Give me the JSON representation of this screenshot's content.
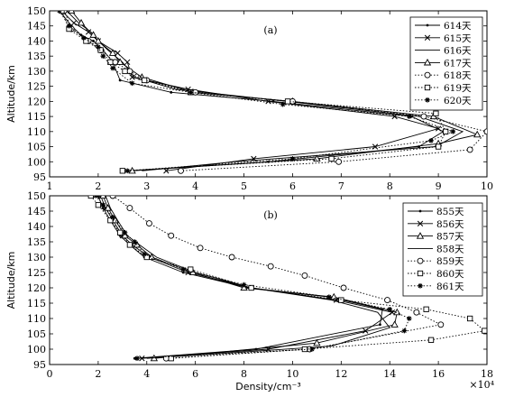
{
  "chart_data": [
    {
      "type": "line",
      "panel_label": "(a)",
      "ylabel": "Altitude/km",
      "xlabel": "",
      "xlim": [
        1,
        10
      ],
      "ylim": [
        95,
        150
      ],
      "xticks": [
        1,
        2,
        3,
        4,
        5,
        6,
        7,
        8,
        9,
        10
      ],
      "yticks": [
        95,
        100,
        105,
        110,
        115,
        120,
        125,
        130,
        135,
        140,
        145,
        150
      ],
      "grid": false,
      "legend_position": "top-right",
      "series": [
        {
          "name": "614天",
          "marker": "dot",
          "dash": "solid",
          "x": [
            1.2,
            1.45,
            1.65,
            1.9,
            2.1,
            2.3,
            2.45,
            3.5,
            5.6,
            8.45,
            9.1,
            8.6,
            5.5,
            2.6
          ],
          "y": [
            150,
            145,
            142,
            140,
            137,
            133,
            127,
            123,
            120,
            115,
            110,
            105,
            100,
            97
          ]
        },
        {
          "name": "615天",
          "marker": "x",
          "dash": "solid",
          "x": [
            1.25,
            1.5,
            1.8,
            2.0,
            2.4,
            2.6,
            2.7,
            3.85,
            5.5,
            8.1,
            9.0,
            7.7,
            5.2,
            3.4
          ],
          "y": [
            150,
            146,
            143,
            140,
            136,
            133,
            128,
            124,
            120,
            115,
            111,
            105,
            101,
            97
          ]
        },
        {
          "name": "616天",
          "marker": "none",
          "dash": "solid",
          "x": [
            1.35,
            1.6,
            1.85,
            2.0,
            2.2,
            2.5,
            2.75,
            3.6,
            5.9,
            8.6,
            9.5,
            8.95,
            4.8,
            2.9
          ],
          "y": [
            150,
            146,
            143,
            140,
            137,
            133,
            128,
            124,
            120,
            115,
            110,
            105,
            100,
            97
          ]
        },
        {
          "name": "617天",
          "marker": "triangle",
          "dash": "solid",
          "x": [
            1.45,
            1.65,
            1.9,
            2.0,
            2.3,
            2.45,
            2.9,
            3.95,
            6.0,
            8.9,
            9.8,
            9.0,
            6.5,
            2.7
          ],
          "y": [
            150,
            146,
            142,
            140,
            136,
            133,
            128,
            123,
            120,
            115,
            109,
            106,
            101,
            97
          ]
        },
        {
          "name": "618天",
          "marker": "circle",
          "dash": "dotted",
          "x": [
            1.3,
            1.45,
            1.8,
            2.05,
            2.35,
            2.65,
            3.0,
            4.0,
            6.0,
            8.7,
            10.0,
            9.65,
            6.95,
            3.7
          ],
          "y": [
            150,
            144,
            140,
            137,
            133,
            130,
            127,
            123,
            120,
            115,
            110,
            104,
            100,
            97
          ]
        },
        {
          "name": "619天",
          "marker": "square",
          "dash": "dotted",
          "x": [
            1.25,
            1.4,
            1.75,
            2.05,
            2.25,
            2.55,
            2.95,
            3.9,
            5.9,
            8.95,
            9.15,
            9.0,
            6.8,
            2.5
          ],
          "y": [
            150,
            144,
            140,
            137,
            133,
            130,
            127,
            123,
            120,
            116,
            110,
            105,
            101,
            97
          ]
        },
        {
          "name": "620天",
          "marker": "star",
          "dash": "dotted",
          "x": [
            1.2,
            1.4,
            1.7,
            2.0,
            2.1,
            2.3,
            2.7,
            3.9,
            5.8,
            8.4,
            9.3,
            8.85,
            6.0,
            2.6
          ],
          "y": [
            150,
            145,
            141,
            138,
            135,
            131,
            126,
            123,
            119,
            115,
            110,
            107,
            101,
            97
          ]
        }
      ]
    },
    {
      "type": "line",
      "panel_label": "(b)",
      "ylabel": "Altitude/km",
      "xlabel": "Density/cm⁻³",
      "x_multiplier": "×10⁴",
      "xlim": [
        0,
        18
      ],
      "ylim": [
        95,
        150
      ],
      "xticks": [
        0,
        2,
        4,
        6,
        8,
        10,
        12,
        14,
        16,
        18
      ],
      "yticks": [
        95,
        100,
        105,
        110,
        115,
        120,
        125,
        130,
        135,
        140,
        145,
        150
      ],
      "grid": false,
      "legend_position": "top-right",
      "series": [
        {
          "name": "855天",
          "marker": "dot",
          "dash": "solid",
          "x": [
            2.0,
            2.2,
            2.5,
            2.9,
            3.3,
            3.9,
            5.5,
            8.2,
            11.5,
            13.7,
            13.6,
            8.5,
            3.5
          ],
          "y": [
            150,
            146,
            142,
            137,
            134,
            130,
            125,
            120,
            117,
            113,
            108,
            100,
            97
          ]
        },
        {
          "name": "856天",
          "marker": "x",
          "dash": "solid",
          "x": [
            2.1,
            2.3,
            2.6,
            3.0,
            3.4,
            4.1,
            5.7,
            8.3,
            11.8,
            14.1,
            13.0,
            9.0,
            3.8
          ],
          "y": [
            150,
            146,
            142,
            137,
            134,
            130,
            125,
            120,
            116,
            112,
            106,
            100,
            97
          ]
        },
        {
          "name": "857天",
          "marker": "triangle",
          "dash": "solid",
          "x": [
            2.2,
            2.4,
            2.7,
            3.1,
            3.6,
            4.2,
            5.9,
            8.0,
            11.7,
            14.3,
            14.2,
            11.0,
            4.3
          ],
          "y": [
            150,
            146,
            142,
            137,
            134,
            130,
            125,
            120,
            117,
            112,
            108,
            102,
            97
          ]
        },
        {
          "name": "858天",
          "marker": "none",
          "dash": "solid",
          "x": [
            2.3,
            2.5,
            2.8,
            3.2,
            3.7,
            4.4,
            6.0,
            8.3,
            11.6,
            13.5,
            14.0,
            11.6,
            4.0
          ],
          "y": [
            150,
            146,
            142,
            137,
            134,
            130,
            125,
            120,
            116,
            112,
            107,
            101,
            97
          ]
        },
        {
          "name": "859天",
          "marker": "circle",
          "dash": "dotted",
          "x": [
            2.6,
            3.3,
            4.1,
            5.0,
            6.2,
            7.5,
            9.1,
            10.5,
            12.1,
            13.9,
            15.1,
            16.1,
            10.7,
            4.8
          ],
          "y": [
            150,
            146,
            141,
            137,
            133,
            130,
            127,
            124,
            120,
            116,
            112,
            108,
            100,
            97
          ]
        },
        {
          "name": "860天",
          "marker": "square",
          "dash": "dotted",
          "x": [
            1.7,
            2.0,
            2.5,
            2.9,
            3.3,
            4.0,
            5.8,
            8.3,
            12.0,
            15.5,
            17.3,
            17.9,
            15.7,
            10.5,
            5.0
          ],
          "y": [
            150,
            147,
            142,
            138,
            134,
            130,
            126,
            120,
            116,
            113,
            110,
            106,
            103,
            100,
            97
          ]
        },
        {
          "name": "861天",
          "marker": "star",
          "dash": "dotted",
          "x": [
            1.9,
            2.2,
            2.6,
            3.1,
            3.5,
            3.9,
            5.5,
            8.0,
            11.5,
            14.0,
            14.8,
            14.6,
            10.8,
            3.6
          ],
          "y": [
            150,
            147,
            143,
            138,
            135,
            131,
            126,
            121,
            117,
            113,
            110,
            106,
            100,
            97
          ]
        }
      ]
    }
  ]
}
